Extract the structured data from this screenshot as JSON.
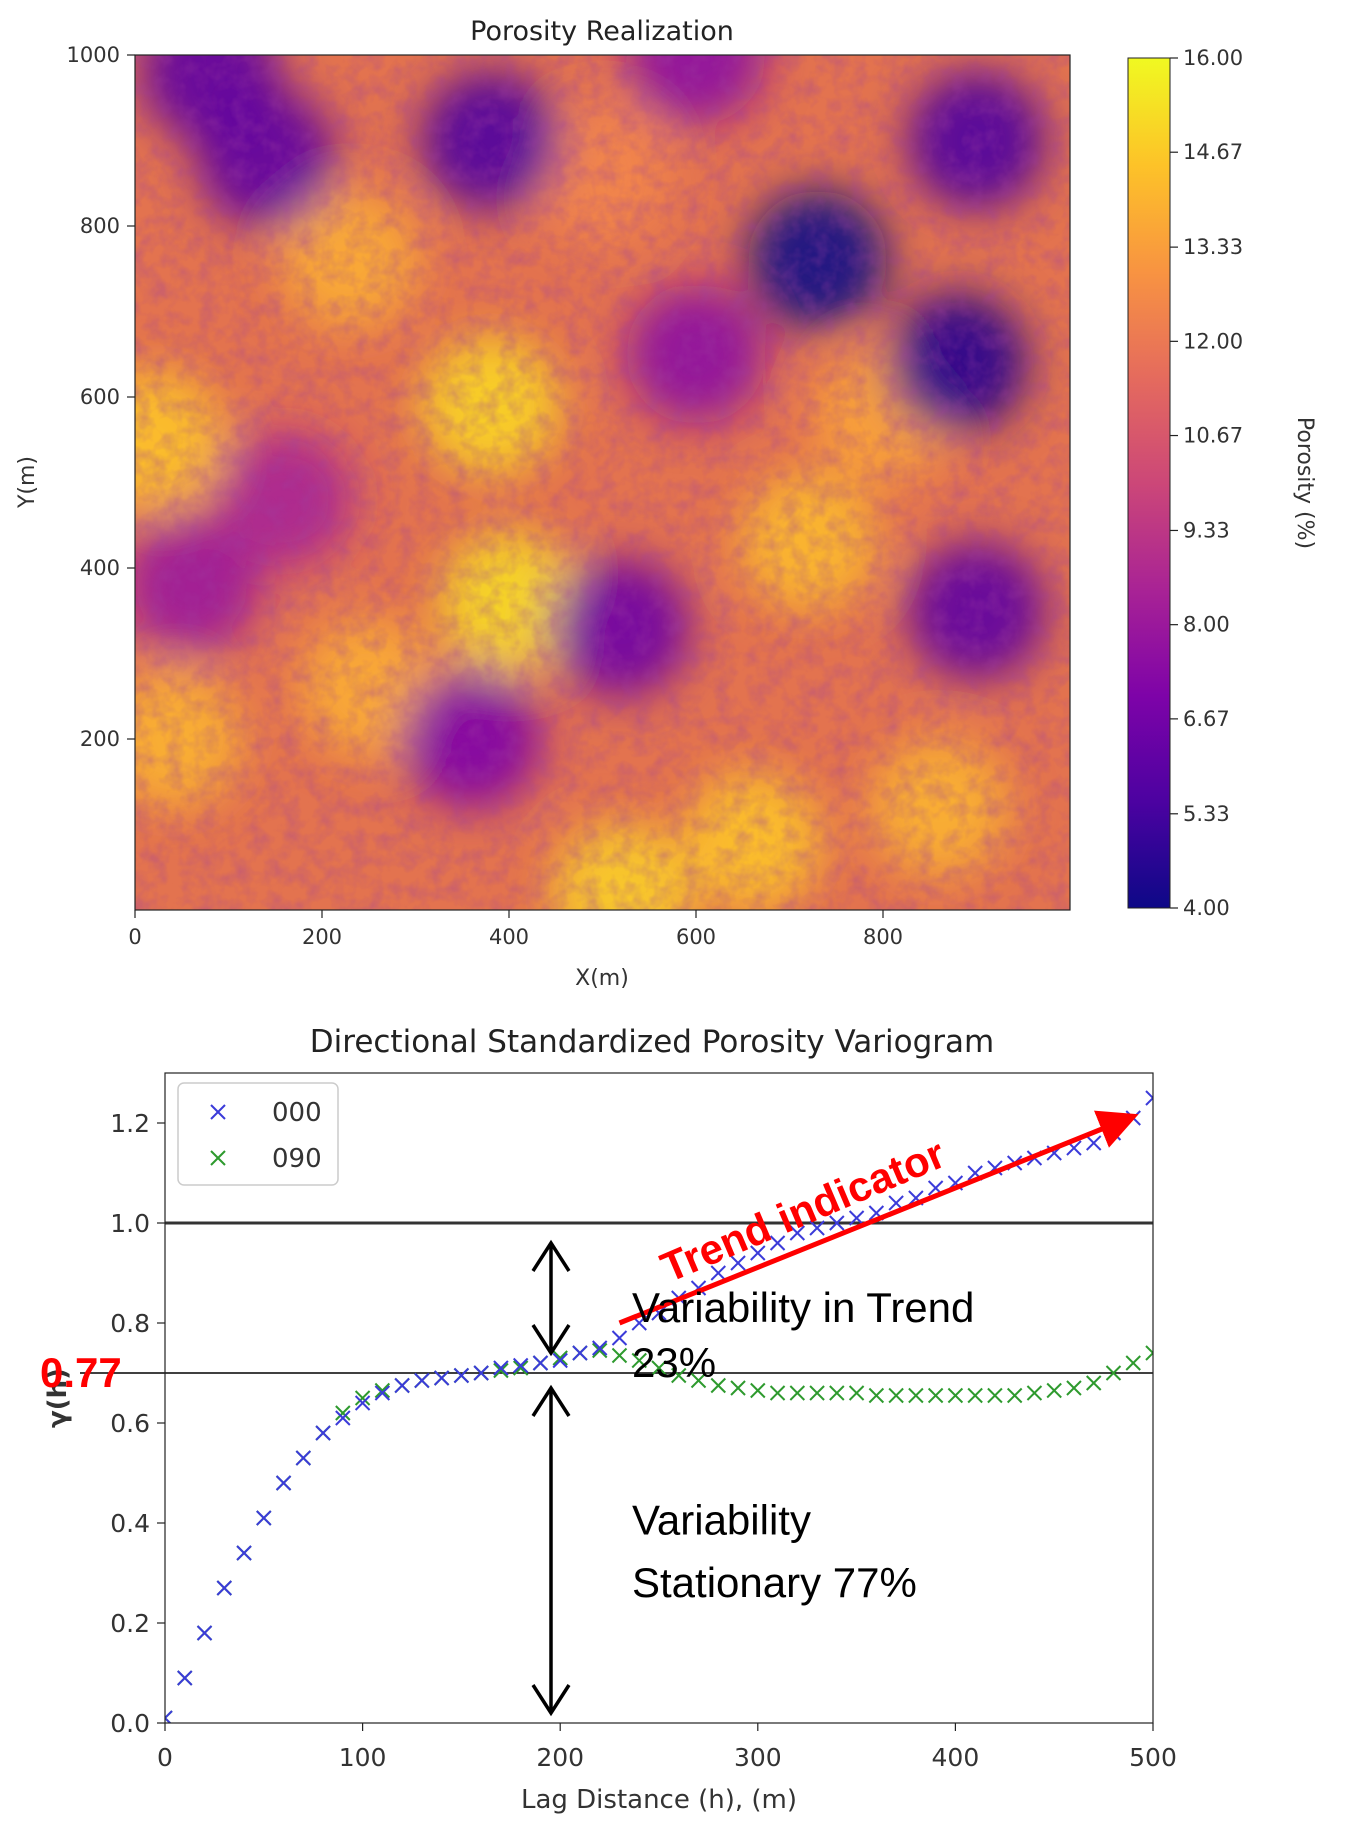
{
  "chart_data": [
    {
      "type": "heatmap",
      "title": "Porosity Realization",
      "xlabel": "X(m)",
      "ylabel": "Y(m)",
      "xlim": [
        0,
        1000
      ],
      "ylim": [
        0,
        1000
      ],
      "xticks": [
        0,
        200,
        400,
        600,
        800
      ],
      "yticks": [
        200,
        400,
        600,
        800,
        1000
      ],
      "colormap": "plasma",
      "colorbar": {
        "label": "Porosity (%)",
        "range": [
          4.0,
          16.0
        ],
        "ticks": [
          "4.00",
          "5.33",
          "6.67",
          "8.00",
          "9.33",
          "10.67",
          "12.00",
          "13.33",
          "14.67",
          "16.00"
        ]
      },
      "features": [
        {
          "x": 380,
          "y": 590,
          "value": 15.0
        },
        {
          "x": 400,
          "y": 360,
          "value": 15.2
        },
        {
          "x": 230,
          "y": 760,
          "value": 13.8
        },
        {
          "x": 20,
          "y": 550,
          "value": 14.5
        },
        {
          "x": 720,
          "y": 430,
          "value": 14.2
        },
        {
          "x": 250,
          "y": 260,
          "value": 13.8
        },
        {
          "x": 40,
          "y": 200,
          "value": 14.0
        },
        {
          "x": 660,
          "y": 80,
          "value": 14.5
        },
        {
          "x": 520,
          "y": 20,
          "value": 14.8
        },
        {
          "x": 860,
          "y": 120,
          "value": 14.0
        },
        {
          "x": 800,
          "y": 580,
          "value": 13.5
        },
        {
          "x": 500,
          "y": 860,
          "value": 12.5
        },
        {
          "x": 140,
          "y": 880,
          "value": 6.0
        },
        {
          "x": 380,
          "y": 900,
          "value": 5.5
        },
        {
          "x": 730,
          "y": 760,
          "value": 4.0
        },
        {
          "x": 900,
          "y": 900,
          "value": 5.5
        },
        {
          "x": 880,
          "y": 640,
          "value": 4.5
        },
        {
          "x": 520,
          "y": 330,
          "value": 6.5
        },
        {
          "x": 900,
          "y": 350,
          "value": 6.0
        },
        {
          "x": 360,
          "y": 200,
          "value": 7.0
        },
        {
          "x": 60,
          "y": 380,
          "value": 8.0
        },
        {
          "x": 160,
          "y": 480,
          "value": 8.5
        },
        {
          "x": 600,
          "y": 650,
          "value": 7.5
        },
        {
          "x": 80,
          "y": 980,
          "value": 6.0
        },
        {
          "x": 600,
          "y": 1000,
          "value": 7.5
        }
      ]
    },
    {
      "type": "scatter",
      "title": "Directional Standardized Porosity Variogram",
      "xlabel": "Lag Distance (h), (m)",
      "ylabel": "γ(h)",
      "xlim": [
        0,
        500
      ],
      "ylim": [
        0,
        1.3
      ],
      "xticks": [
        0,
        100,
        200,
        300,
        400,
        500
      ],
      "yticks": [
        "0.0",
        "0.2",
        "0.4",
        "0.6",
        "0.8",
        "1.0",
        "1.2"
      ],
      "legend": "top-left",
      "series": [
        {
          "name": "000",
          "color": "#3b3bd9",
          "x": [
            0,
            10,
            20,
            30,
            40,
            50,
            60,
            70,
            80,
            90,
            100,
            110,
            120,
            130,
            140,
            150,
            160,
            170,
            180,
            190,
            200,
            210,
            220,
            230,
            240,
            250,
            260,
            270,
            280,
            290,
            300,
            310,
            320,
            330,
            340,
            350,
            360,
            370,
            380,
            390,
            400,
            410,
            420,
            430,
            440,
            450,
            460,
            470,
            480,
            490,
            500
          ],
          "y": [
            0.01,
            0.09,
            0.18,
            0.27,
            0.34,
            0.41,
            0.48,
            0.53,
            0.58,
            0.61,
            0.64,
            0.66,
            0.675,
            0.685,
            0.69,
            0.695,
            0.7,
            0.71,
            0.715,
            0.72,
            0.725,
            0.74,
            0.75,
            0.77,
            0.8,
            0.82,
            0.85,
            0.87,
            0.9,
            0.92,
            0.94,
            0.96,
            0.98,
            0.99,
            1.0,
            1.01,
            1.02,
            1.04,
            1.05,
            1.07,
            1.08,
            1.1,
            1.11,
            1.12,
            1.13,
            1.14,
            1.15,
            1.16,
            1.18,
            1.21,
            1.25
          ]
        },
        {
          "name": "090",
          "color": "#2e9a2e",
          "x": [
            0,
            10,
            20,
            30,
            40,
            50,
            60,
            70,
            80,
            90,
            100,
            110,
            120,
            130,
            140,
            150,
            160,
            170,
            180,
            190,
            200,
            210,
            220,
            230,
            240,
            250,
            260,
            270,
            280,
            290,
            300,
            310,
            320,
            330,
            340,
            350,
            360,
            370,
            380,
            390,
            400,
            410,
            420,
            430,
            440,
            450,
            460,
            470,
            480,
            490,
            500
          ],
          "y": [
            0.01,
            0.09,
            0.18,
            0.27,
            0.34,
            0.41,
            0.48,
            0.53,
            0.58,
            0.62,
            0.65,
            0.665,
            0.675,
            0.685,
            0.69,
            0.695,
            0.7,
            0.705,
            0.71,
            0.72,
            0.73,
            0.74,
            0.745,
            0.735,
            0.725,
            0.71,
            0.695,
            0.685,
            0.675,
            0.67,
            0.665,
            0.66,
            0.66,
            0.66,
            0.66,
            0.66,
            0.655,
            0.655,
            0.655,
            0.655,
            0.655,
            0.655,
            0.655,
            0.655,
            0.66,
            0.665,
            0.67,
            0.68,
            0.7,
            0.72,
            0.74
          ]
        }
      ],
      "reference_lines": [
        1.0,
        0.7
      ],
      "annotations": {
        "sill_value": "0.77",
        "trend_text": "Trend indicator",
        "trend_pct_line1": "Variability in Trend",
        "trend_pct_line2": "23%",
        "stationary_line1": "Variability",
        "stationary_line2": "Stationary 77%"
      }
    }
  ]
}
